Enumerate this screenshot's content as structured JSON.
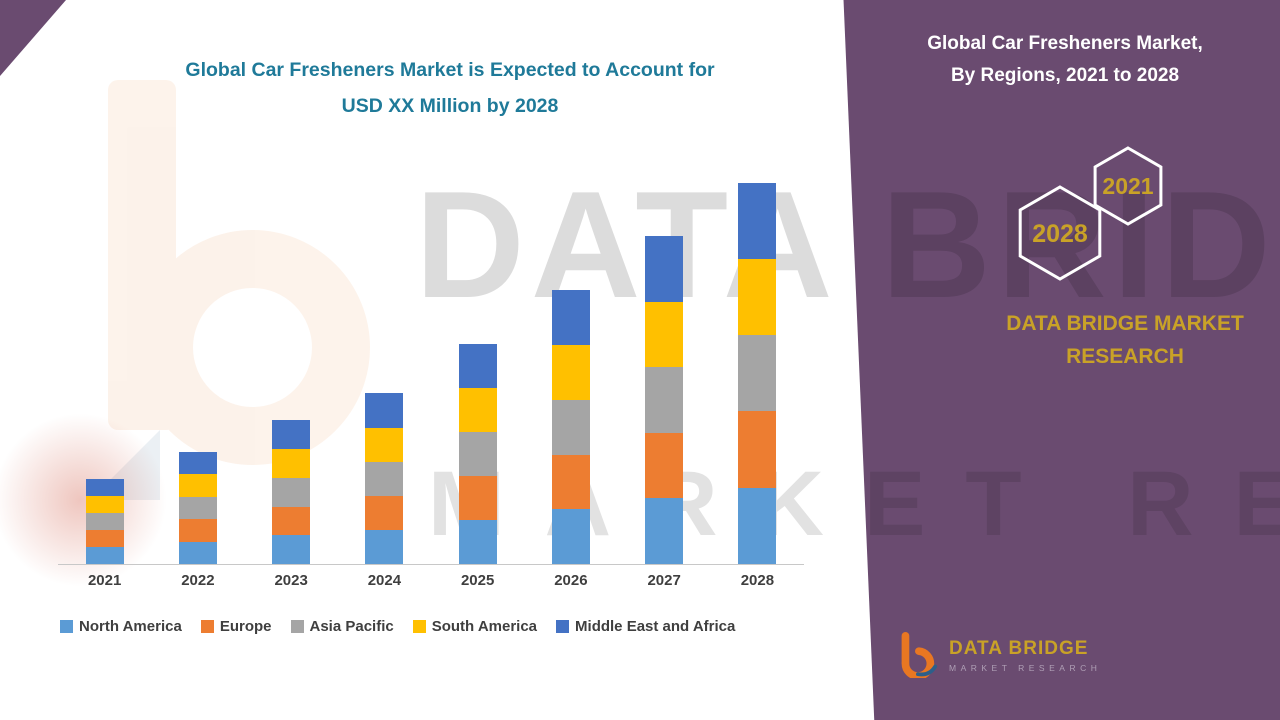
{
  "left": {
    "title_line1": "Global Car Fresheners Market is Expected to Account for",
    "title_line2": "USD XX Million by 2028"
  },
  "panel": {
    "title_line1": "Global Car Fresheners Market,",
    "title_line2": "By Regions, 2021 to 2028",
    "hex_top_year": "2021",
    "hex_bottom_year": "2028",
    "brand_line1": "DATA BRIDGE MARKET",
    "brand_line2": "RESEARCH",
    "logo_title": "DATA BRIDGE",
    "logo_subtitle": "MARKET RESEARCH",
    "background_color": "#6A4B70",
    "accent_gold": "#C9A227"
  },
  "watermark": {
    "line1": "DATA BRIDGE",
    "line2": "MARKET RESEARCH"
  },
  "colors": {
    "title_teal": "#1F7A99",
    "axis_text": "#3F3F3F"
  },
  "chart_data": {
    "type": "bar",
    "stacked": true,
    "title": "Global Car Fresheners Market is Expected to Account for USD XX Million by 2028",
    "xlabel": "",
    "ylabel": "",
    "y_axis_visible": false,
    "grid": false,
    "legend_position": "bottom",
    "ylim": [
      0,
      45
    ],
    "categories": [
      "2021",
      "2022",
      "2023",
      "2024",
      "2025",
      "2026",
      "2027",
      "2028"
    ],
    "series": [
      {
        "name": "North America",
        "color": "#5B9BD5",
        "values": [
          1.9,
          2.5,
          3.2,
          3.8,
          4.9,
          6.1,
          7.3,
          8.5
        ]
      },
      {
        "name": "Europe",
        "color": "#ED7D31",
        "values": [
          1.9,
          2.5,
          3.2,
          3.8,
          4.9,
          6.1,
          7.3,
          8.5
        ]
      },
      {
        "name": "Asia Pacific",
        "color": "#A5A5A5",
        "values": [
          1.9,
          2.5,
          3.2,
          3.8,
          4.9,
          6.1,
          7.3,
          8.5
        ]
      },
      {
        "name": "South America",
        "color": "#FFC000",
        "values": [
          1.9,
          2.5,
          3.2,
          3.8,
          4.9,
          6.1,
          7.3,
          8.5
        ]
      },
      {
        "name": "Middle East and Africa",
        "color": "#4472C4",
        "values": [
          1.9,
          2.5,
          3.2,
          3.8,
          4.9,
          6.1,
          7.3,
          8.5
        ]
      }
    ]
  }
}
